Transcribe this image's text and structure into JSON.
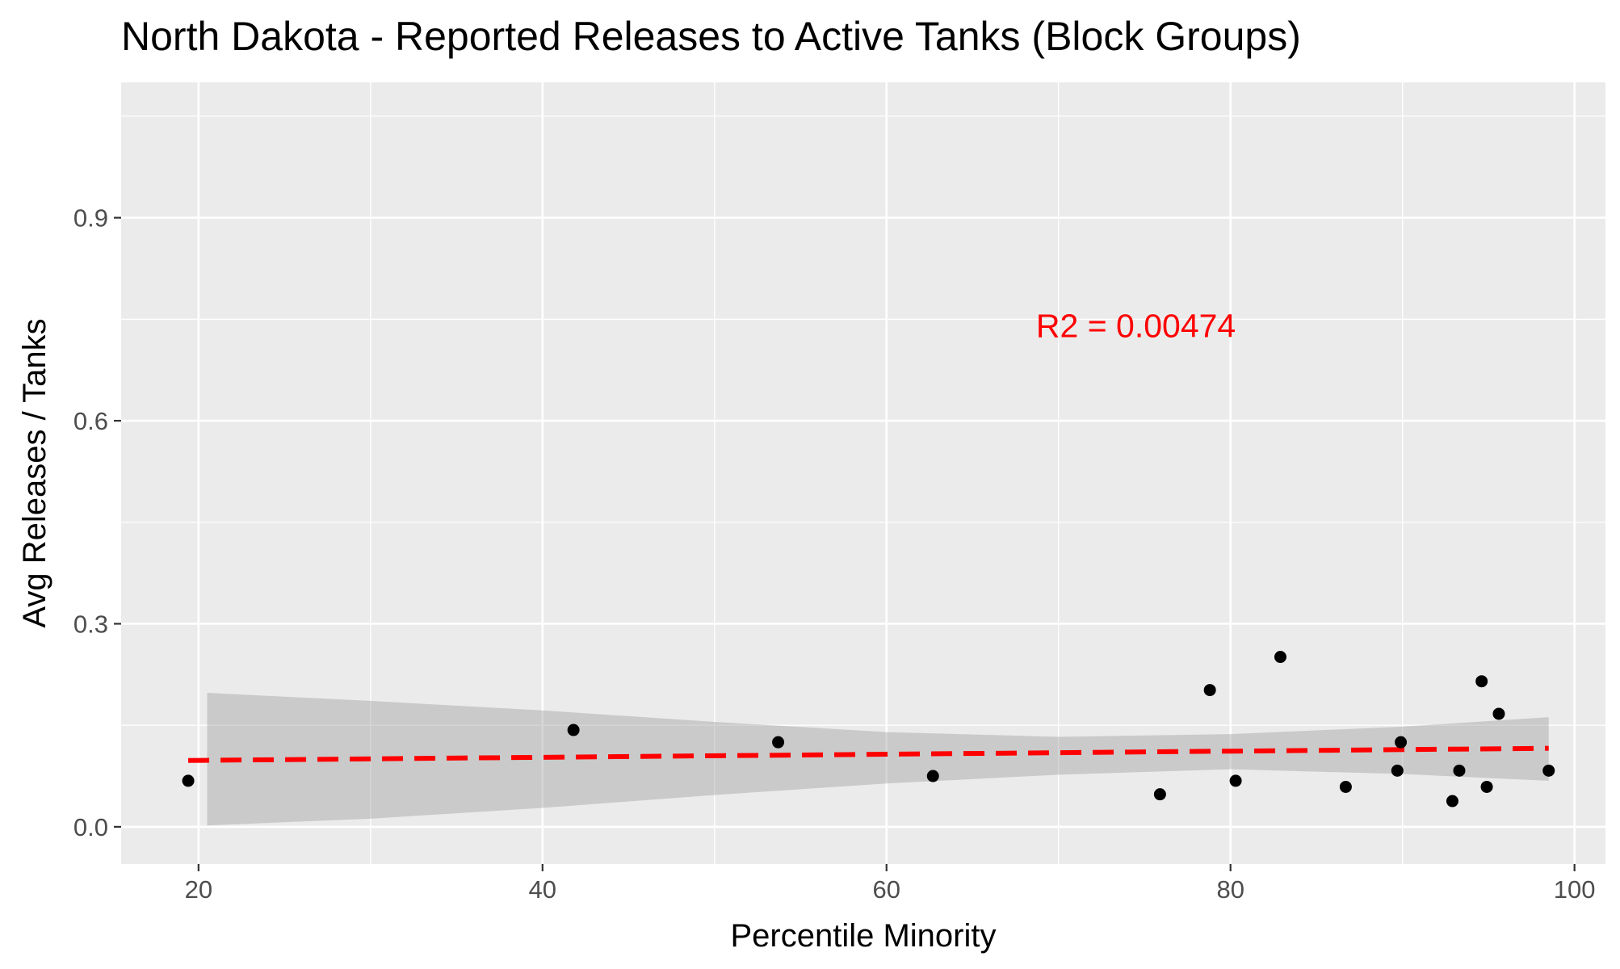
{
  "chart_data": {
    "type": "scatter",
    "title": "North Dakota - Reported Releases to Active Tanks (Block Groups)",
    "xlabel": "Percentile Minority",
    "ylabel": "Avg Releases / Tanks",
    "xlim": [
      15.5,
      101.8
    ],
    "ylim": [
      -0.055,
      1.1
    ],
    "x_ticks": [
      20,
      40,
      60,
      80,
      100
    ],
    "x_tick_labels": [
      "20",
      "40",
      "60",
      "80",
      "100"
    ],
    "y_ticks": [
      0.0,
      0.3,
      0.6,
      0.9
    ],
    "y_tick_labels": [
      "0.0",
      "0.3",
      "0.6",
      "0.9"
    ],
    "grid": true,
    "panel_background": "#ebebeb",
    "grid_color": "#ffffff",
    "series": [
      {
        "kind": "points",
        "color": "#000000",
        "points": [
          {
            "x": 19.4,
            "y": 0.068
          },
          {
            "x": 41.8,
            "y": 0.143
          },
          {
            "x": 53.7,
            "y": 0.125
          },
          {
            "x": 62.7,
            "y": 0.075
          },
          {
            "x": 75.9,
            "y": 0.048
          },
          {
            "x": 78.8,
            "y": 0.202
          },
          {
            "x": 80.3,
            "y": 0.068
          },
          {
            "x": 82.9,
            "y": 0.251
          },
          {
            "x": 86.7,
            "y": 0.059
          },
          {
            "x": 89.7,
            "y": 0.083
          },
          {
            "x": 89.9,
            "y": 0.125
          },
          {
            "x": 92.9,
            "y": 0.038
          },
          {
            "x": 93.3,
            "y": 0.083
          },
          {
            "x": 94.6,
            "y": 0.215
          },
          {
            "x": 94.9,
            "y": 0.059
          },
          {
            "x": 95.6,
            "y": 0.167
          },
          {
            "x": 98.5,
            "y": 0.083
          }
        ]
      },
      {
        "kind": "trend",
        "style": "dashed",
        "color": "#ff0000",
        "x": [
          19.4,
          98.5
        ],
        "y": [
          0.098,
          0.116
        ]
      },
      {
        "kind": "confidence_band",
        "color": "#999999",
        "opacity": 0.4,
        "x": [
          20.5,
          30,
          40,
          50,
          60,
          70,
          80,
          90,
          98.5
        ],
        "lower": [
          0.002,
          0.012,
          0.028,
          0.047,
          0.064,
          0.077,
          0.085,
          0.078,
          0.068
        ],
        "upper": [
          0.198,
          0.186,
          0.172,
          0.155,
          0.14,
          0.133,
          0.137,
          0.148,
          0.162
        ]
      }
    ],
    "annotations": [
      {
        "text": "R2 =  0.00474",
        "x": 74.5,
        "y": 0.74,
        "color": "#ff0000"
      }
    ]
  }
}
